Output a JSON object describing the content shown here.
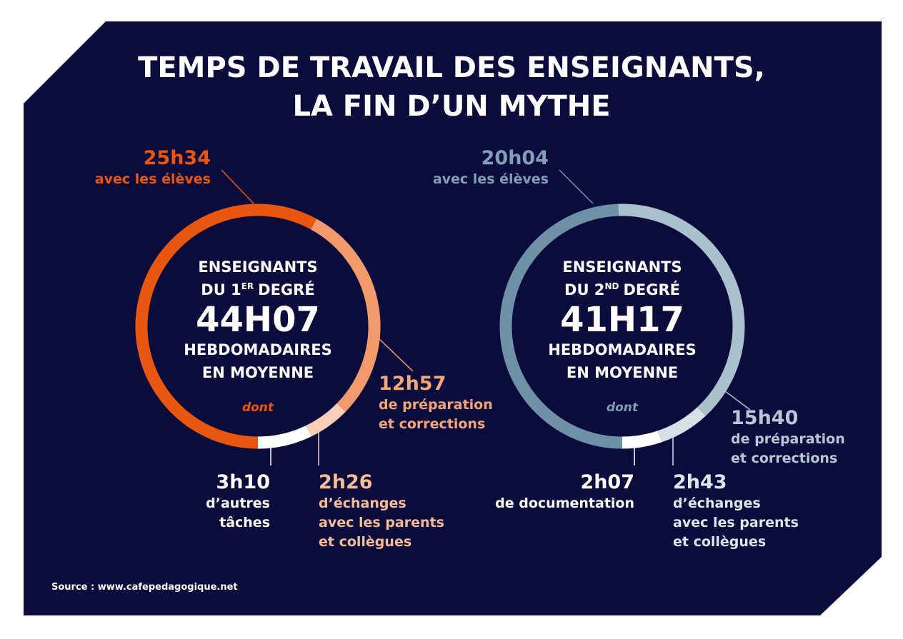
{
  "title": [
    "TEMPS DE TRAVAIL DES ENSEIGNANTS,",
    "LA FIN D’UN MYTHE"
  ],
  "source": "Source : www.cafepedagogique.net",
  "chart_data": [
    {
      "type": "donut",
      "center": {
        "line1": "ENSEIGNANTS",
        "level": "DU 1",
        "level_sup": "ER",
        "level_after": "DEGRÉ",
        "total": "44H07",
        "caption1": "HEBDOMADAIRES",
        "caption2": "EN MOYENNE",
        "dont": "dont",
        "dont_color": "#e8560f"
      },
      "categories": [
        "avec les élèves",
        "de préparation\net corrections",
        "d’échanges\navec les parents\net collègues",
        "d’autres\ntâches"
      ],
      "values": [
        1534,
        777,
        146,
        190
      ],
      "value_labels": [
        "25h34",
        "12h57",
        "2h26",
        "3h10"
      ],
      "colors": [
        "#e8560f",
        "#f19b6c",
        "#f9cfb6",
        "#ffffff"
      ],
      "label_colors": [
        "#e8560f",
        "#f4a67a",
        "#f6bb98",
        "#ffffff"
      ]
    },
    {
      "type": "donut",
      "center": {
        "line1": "ENSEIGNANTS",
        "level": "DU 2",
        "level_sup": "ND",
        "level_after": "DEGRÉ",
        "total": "41H17",
        "caption1": "HEBDOMADAIRES",
        "caption2": "EN MOYENNE",
        "dont": "dont",
        "dont_color": "#7e9fb5"
      },
      "categories": [
        "avec les élèves",
        "de préparation\net corrections",
        "d’échanges\navec les parents\net collègues",
        "de documentation"
      ],
      "values": [
        1204,
        940,
        163,
        127
      ],
      "value_labels": [
        "20h04",
        "15h40",
        "2h43",
        "2h07"
      ],
      "colors": [
        "#6e91a8",
        "#abc0cd",
        "#d5e0e7",
        "#ffffff"
      ],
      "label_colors": [
        "#7e9fb5",
        "#b7c8d4",
        "#dde6ec",
        "#ffffff"
      ]
    }
  ]
}
